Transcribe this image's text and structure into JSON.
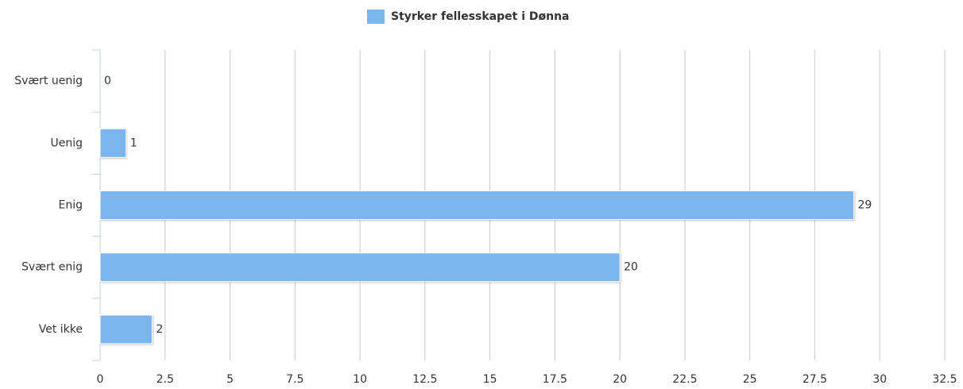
{
  "chart_data": {
    "type": "bar",
    "orientation": "horizontal",
    "categories": [
      "Svært uenig",
      "Uenig",
      "Enig",
      "Svært enig",
      "Vet ikke"
    ],
    "series": [
      {
        "name": "Styrker fellesskapet i Dønna",
        "color": "#7cb5ec",
        "values": [
          0,
          1,
          29,
          20,
          2
        ]
      }
    ],
    "xlim": [
      0,
      32.5
    ],
    "xticks": [
      0,
      2.5,
      5,
      7.5,
      10,
      12.5,
      15,
      17.5,
      20,
      22.5,
      25,
      27.5,
      30,
      32.5
    ],
    "grid": true,
    "legend": "top",
    "data_labels": true
  }
}
